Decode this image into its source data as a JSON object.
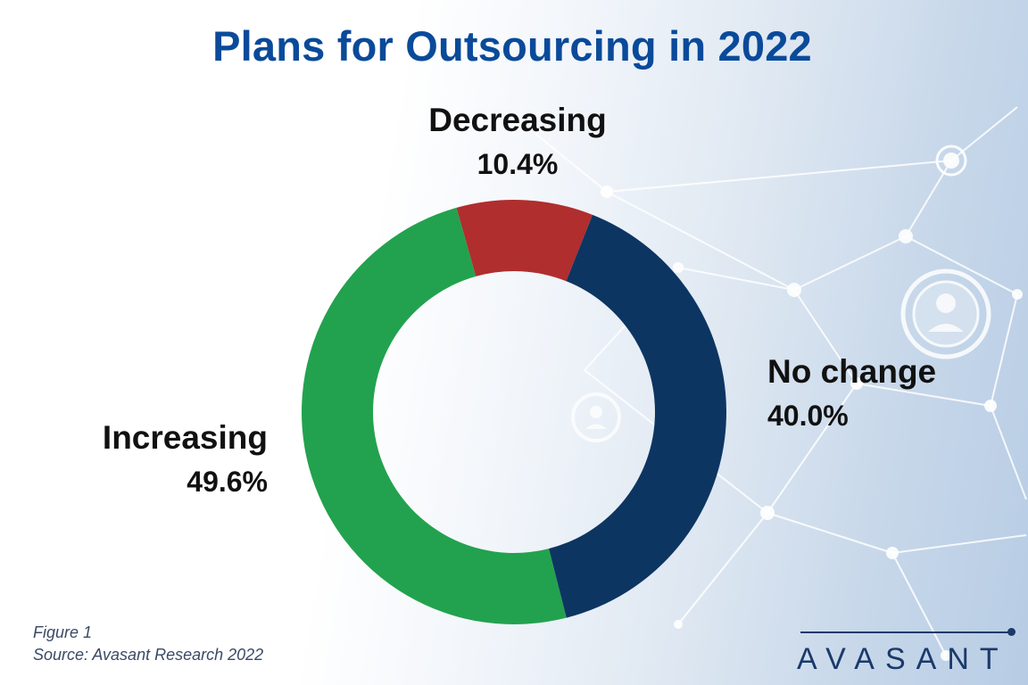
{
  "title": "Plans for Outsourcing in 2022",
  "colors": {
    "title": "#0a4a9a",
    "increasing": "#22a24e",
    "no_change": "#0d3562",
    "decreasing": "#b02e2e",
    "background_network": "#ffffff"
  },
  "chart_data": {
    "type": "pie",
    "style": "donut",
    "title": "Plans for Outsourcing in 2022",
    "categories": [
      "Decreasing",
      "No change",
      "Increasing"
    ],
    "values": [
      10.4,
      40.0,
      49.6
    ],
    "value_labels": [
      "10.4%",
      "40.0%",
      "49.6%"
    ],
    "unit": "%",
    "legend": "none",
    "labels_position": "outside"
  },
  "labels": {
    "decreasing": {
      "name": "Decreasing",
      "pct": "10.4%"
    },
    "no_change": {
      "name": "No change",
      "pct": "40.0%"
    },
    "increasing": {
      "name": "Increasing",
      "pct": "49.6%"
    }
  },
  "figure_note": {
    "line1": "Figure 1",
    "line2": "Source: Avasant Research 2022"
  },
  "brand": {
    "logo_text": "AVASANT"
  },
  "background": {
    "decoration": "network-nodes-and-people-icons"
  }
}
